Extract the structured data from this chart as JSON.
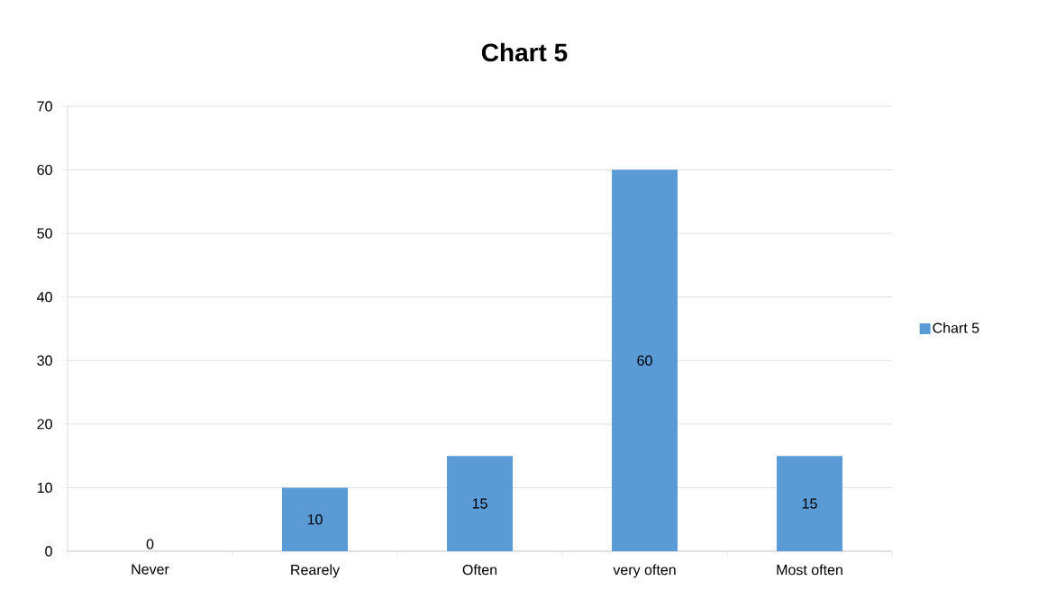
{
  "chart_data": {
    "type": "bar",
    "title": "Chart 5",
    "categories": [
      "Never",
      "Rearely",
      "Often",
      "very often",
      "Most often"
    ],
    "series": [
      {
        "name": "Chart 5",
        "color": "#5b9bd5",
        "values": [
          0,
          10,
          15,
          60,
          15
        ]
      }
    ],
    "ylim": [
      0,
      70
    ],
    "yticks": [
      0,
      10,
      20,
      30,
      40,
      50,
      60,
      70
    ],
    "grid": "y",
    "legend": "right",
    "data_labels": true
  }
}
